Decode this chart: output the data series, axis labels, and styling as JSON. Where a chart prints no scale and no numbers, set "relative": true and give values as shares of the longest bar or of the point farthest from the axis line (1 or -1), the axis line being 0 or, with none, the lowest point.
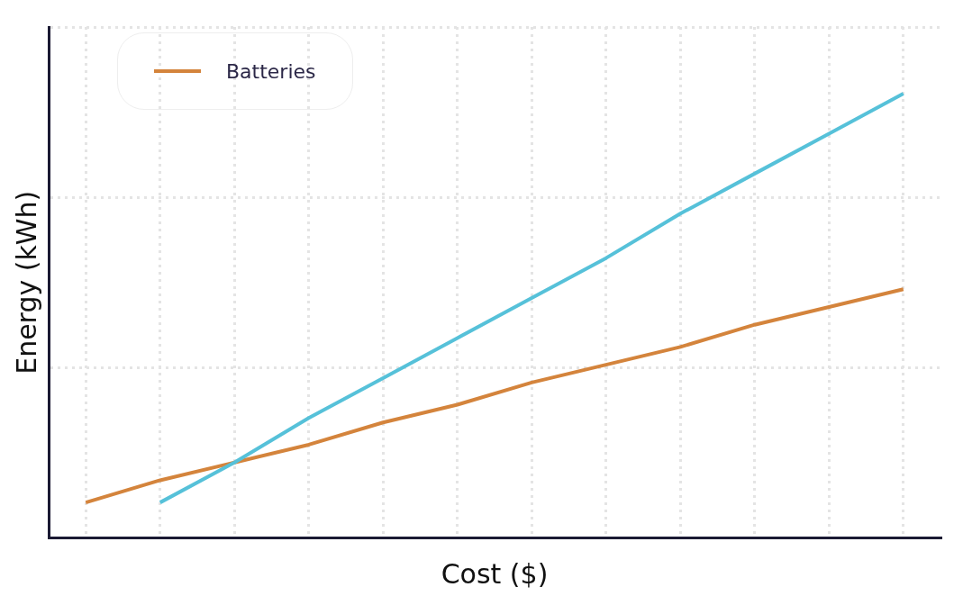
{
  "chart_data": {
    "type": "line",
    "xlabel": "Cost ($)",
    "ylabel": "Energy (kWh)",
    "relative": true,
    "grid": true,
    "legend": "top left",
    "marker": "none",
    "line_style": "solid",
    "categories": [
      null,
      null,
      null,
      null,
      null,
      null,
      null,
      null,
      null,
      null,
      null,
      null
    ],
    "series": [
      {
        "color": "#56c1d9",
        "values": [
          null,
          0.08,
          0.17,
          0.27,
          0.36,
          0.45,
          0.54,
          0.63,
          0.73,
          0.82,
          0.91,
          1
        ]
      },
      {
        "name": "Batteries",
        "color": "#d4843c",
        "values": [
          0.08,
          0.13,
          0.17,
          0.21,
          0.26,
          0.3,
          0.35,
          0.39,
          0.43,
          0.48,
          0.52,
          0.56
        ]
      }
    ]
  }
}
